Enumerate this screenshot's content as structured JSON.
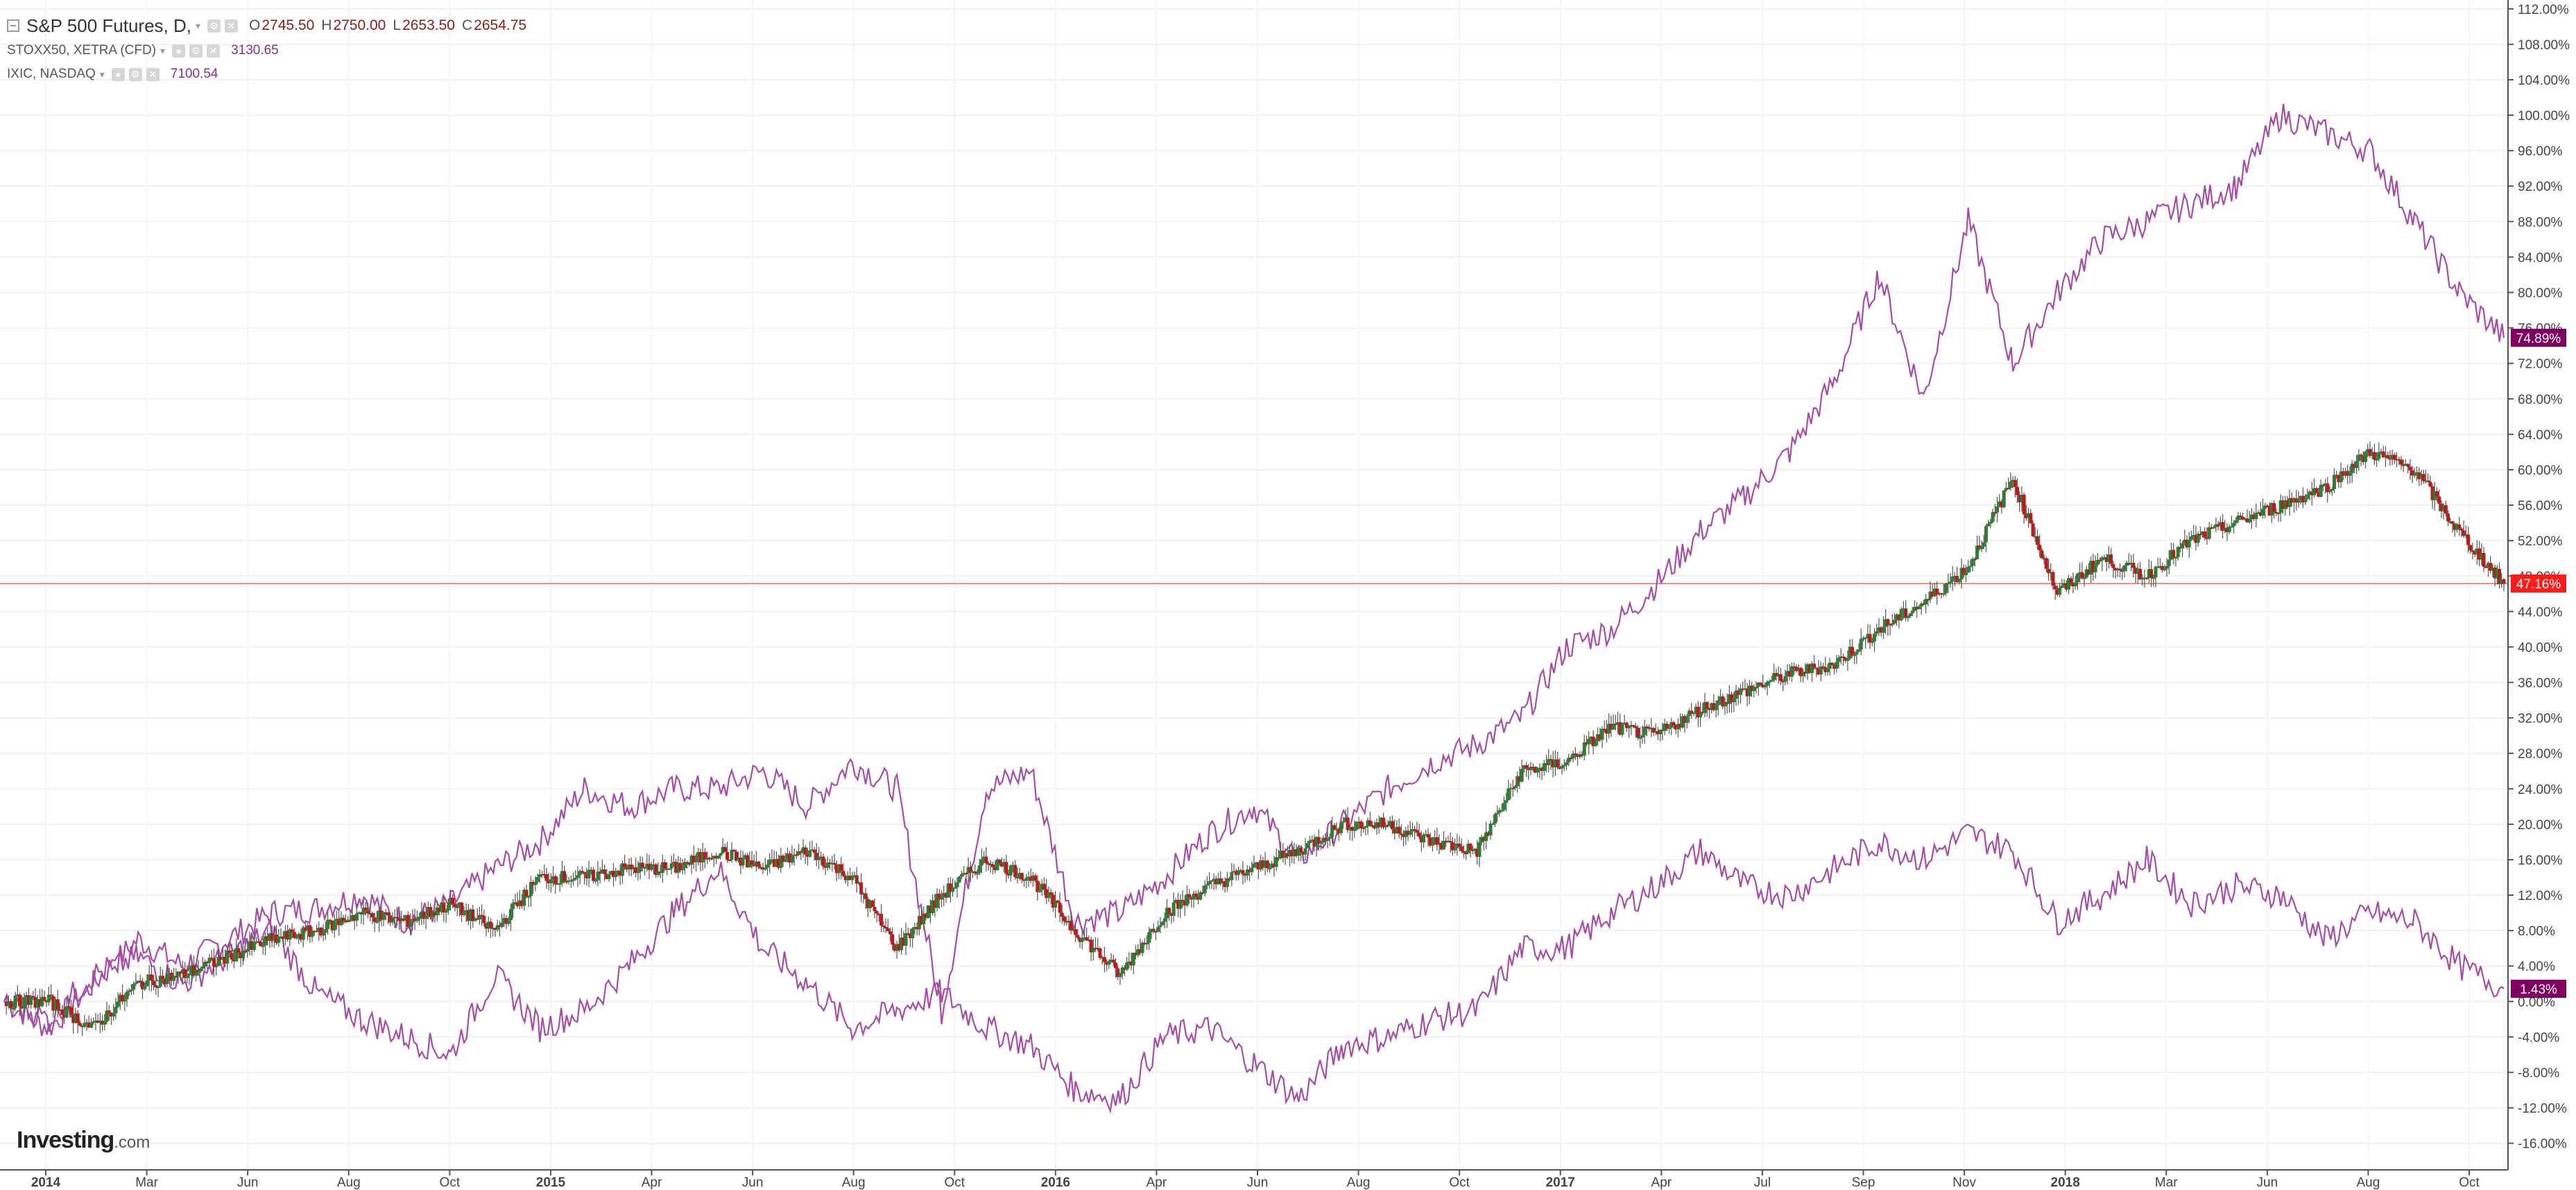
{
  "legend": {
    "main": {
      "symbol": "S&P 500 Futures, D,",
      "open_key": "O",
      "open": "2745.50",
      "high_key": "H",
      "high": "2750.00",
      "low_key": "L",
      "low": "2653.50",
      "close_key": "C",
      "close": "2654.75",
      "color": "#8b1a1a"
    },
    "comparisons": [
      {
        "symbol": "STOXX50, XETRA (CFD)",
        "value": "3130.65",
        "color": "#8e2a8e"
      },
      {
        "symbol": "IXIC, NASDAQ",
        "value": "7100.54",
        "color": "#8e2a8e"
      }
    ]
  },
  "brand": {
    "name": "Investing",
    "suffix": ".com"
  },
  "chart_data": {
    "type": "line",
    "ylim": [
      -19,
      113
    ],
    "y_axis_labels": [
      "112.00%",
      "108.00%",
      "104.00%",
      "100.00%",
      "96.00%",
      "92.00%",
      "88.00%",
      "84.00%",
      "80.00%",
      "76.00%",
      "72.00%",
      "68.00%",
      "64.00%",
      "60.00%",
      "56.00%",
      "52.00%",
      "48.00%",
      "44.00%",
      "40.00%",
      "36.00%",
      "32.00%",
      "28.00%",
      "24.00%",
      "20.00%",
      "16.00%",
      "12.00%",
      "8.00%",
      "4.00%",
      "0.00%",
      "-4.00%",
      "-8.00%",
      "-12.00%",
      "-16.00%"
    ],
    "x_axis_labels": [
      "2014",
      "Mar",
      "Jun",
      "Aug",
      "Oct",
      "2015",
      "Apr",
      "Jun",
      "Aug",
      "Oct",
      "2016",
      "Apr",
      "Jun",
      "Aug",
      "Oct",
      "2017",
      "Apr",
      "Jul",
      "Sep",
      "Nov",
      "2018",
      "Mar",
      "Jun",
      "Aug",
      "Oct"
    ],
    "x_axis_bold": [
      "2014",
      "2015",
      "2016",
      "2017",
      "2018"
    ],
    "price_line": 47.16,
    "last_value_labels": [
      {
        "text": "74.89%",
        "value": 74.89,
        "color": "#800060"
      },
      {
        "text": "47.16%",
        "value": 47.16,
        "color": "#ff1a1a"
      },
      {
        "text": "1.43%",
        "value": 1.43,
        "color": "#800060"
      }
    ],
    "series": [
      {
        "name": "IXIC, NASDAQ",
        "color": "#a64ca6",
        "style": "line",
        "values": [
          [
            0,
            0
          ],
          [
            0.5,
            -3
          ],
          [
            1,
            2
          ],
          [
            1.5,
            7
          ],
          [
            2,
            4
          ],
          [
            2.5,
            7
          ],
          [
            3,
            10
          ],
          [
            3.5,
            10.5
          ],
          [
            4,
            12
          ],
          [
            4.5,
            9
          ],
          [
            5,
            11
          ],
          [
            5.5,
            15
          ],
          [
            6,
            18
          ],
          [
            6.5,
            24
          ],
          [
            7,
            22
          ],
          [
            7.5,
            24
          ],
          [
            8,
            24
          ],
          [
            8.5,
            26
          ],
          [
            9,
            22
          ],
          [
            9.5,
            27
          ],
          [
            10,
            24
          ],
          [
            10.5,
            -1
          ],
          [
            11,
            24
          ],
          [
            11.5,
            26
          ],
          [
            12,
            9
          ],
          [
            12.5,
            10
          ],
          [
            13,
            14
          ],
          [
            13.5,
            19
          ],
          [
            14,
            22
          ],
          [
            14.5,
            16
          ],
          [
            15,
            20
          ],
          [
            15.5,
            24
          ],
          [
            16,
            27
          ],
          [
            16.5,
            29
          ],
          [
            17,
            32
          ],
          [
            17.5,
            40
          ],
          [
            18,
            42
          ],
          [
            18.5,
            47
          ],
          [
            19,
            53
          ],
          [
            19.5,
            57
          ],
          [
            20,
            62
          ],
          [
            20.5,
            70
          ],
          [
            21,
            82
          ],
          [
            21.5,
            68
          ],
          [
            22,
            88
          ],
          [
            22.5,
            72
          ],
          [
            23,
            80
          ],
          [
            23.5,
            86
          ],
          [
            24,
            88
          ],
          [
            24.5,
            90
          ],
          [
            25,
            92
          ],
          [
            25.5,
            100
          ],
          [
            26,
            98
          ],
          [
            26.5,
            96
          ],
          [
            27,
            88
          ],
          [
            27.5,
            80
          ],
          [
            28,
            74.89
          ]
        ]
      },
      {
        "name": "STOXX50, XETRA (CFD)",
        "color": "#a64ca6",
        "style": "line",
        "values": [
          [
            0,
            0
          ],
          [
            0.5,
            -2
          ],
          [
            1,
            3
          ],
          [
            1.5,
            5
          ],
          [
            2,
            2
          ],
          [
            2.5,
            5
          ],
          [
            3,
            8
          ],
          [
            3.5,
            1
          ],
          [
            4,
            -2
          ],
          [
            4.5,
            -4
          ],
          [
            5,
            -6
          ],
          [
            5.5,
            3
          ],
          [
            6,
            -3
          ],
          [
            6.5,
            -1
          ],
          [
            7,
            4
          ],
          [
            7.5,
            10
          ],
          [
            8,
            15
          ],
          [
            8.5,
            6
          ],
          [
            9,
            2
          ],
          [
            9.5,
            -3
          ],
          [
            10,
            -1
          ],
          [
            10.5,
            1
          ],
          [
            11,
            -3
          ],
          [
            11.5,
            -5
          ],
          [
            12,
            -10
          ],
          [
            12.5,
            -11
          ],
          [
            13,
            -4
          ],
          [
            13.5,
            -3
          ],
          [
            14,
            -7
          ],
          [
            14.5,
            -11
          ],
          [
            15,
            -5
          ],
          [
            15.5,
            -4
          ],
          [
            16,
            -2
          ],
          [
            16.5,
            -1
          ],
          [
            17,
            6
          ],
          [
            17.5,
            6
          ],
          [
            18,
            10
          ],
          [
            18.5,
            13
          ],
          [
            19,
            17
          ],
          [
            19.5,
            13
          ],
          [
            20,
            12
          ],
          [
            20.5,
            15
          ],
          [
            21,
            18
          ],
          [
            21.5,
            16
          ],
          [
            22,
            19
          ],
          [
            22.5,
            17
          ],
          [
            23,
            9
          ],
          [
            23.5,
            12
          ],
          [
            24,
            16
          ],
          [
            24.5,
            11
          ],
          [
            25,
            13
          ],
          [
            25.5,
            12
          ],
          [
            26,
            7
          ],
          [
            26.5,
            10
          ],
          [
            27,
            9
          ],
          [
            27.5,
            4
          ],
          [
            28,
            1.43
          ]
        ]
      },
      {
        "name": "S&P 500 Futures",
        "color": "#2e7d32",
        "down_color": "#b71c1c",
        "style": "candles",
        "values": [
          [
            0,
            0
          ],
          [
            0.5,
            0
          ],
          [
            1,
            -3
          ],
          [
            1.5,
            2
          ],
          [
            2,
            3
          ],
          [
            2.5,
            5
          ],
          [
            3,
            7
          ],
          [
            3.5,
            8
          ],
          [
            4,
            10
          ],
          [
            4.5,
            9
          ],
          [
            5,
            11
          ],
          [
            5.5,
            8
          ],
          [
            6,
            14
          ],
          [
            6.5,
            14
          ],
          [
            7,
            15
          ],
          [
            7.5,
            15
          ],
          [
            8,
            17
          ],
          [
            8.5,
            15
          ],
          [
            9,
            17
          ],
          [
            9.5,
            14
          ],
          [
            10,
            6
          ],
          [
            10.5,
            12
          ],
          [
            11,
            16
          ],
          [
            11.5,
            14
          ],
          [
            12,
            8
          ],
          [
            12.5,
            3
          ],
          [
            13,
            10
          ],
          [
            13.5,
            13
          ],
          [
            14,
            15
          ],
          [
            14.5,
            17
          ],
          [
            15,
            20
          ],
          [
            15.5,
            20
          ],
          [
            16,
            18
          ],
          [
            16.5,
            17
          ],
          [
            17,
            26
          ],
          [
            17.5,
            27
          ],
          [
            18,
            31
          ],
          [
            18.5,
            30
          ],
          [
            19,
            33
          ],
          [
            19.5,
            35
          ],
          [
            20,
            37
          ],
          [
            20.5,
            38
          ],
          [
            21,
            42
          ],
          [
            21.5,
            45
          ],
          [
            22,
            49
          ],
          [
            22.5,
            59
          ],
          [
            23,
            46
          ],
          [
            23.5,
            50
          ],
          [
            24,
            48
          ],
          [
            24.5,
            52
          ],
          [
            25,
            54
          ],
          [
            25.5,
            56
          ],
          [
            26,
            58
          ],
          [
            26.5,
            62
          ],
          [
            27,
            60
          ],
          [
            27.5,
            53
          ],
          [
            28,
            47.16
          ]
        ]
      }
    ]
  }
}
